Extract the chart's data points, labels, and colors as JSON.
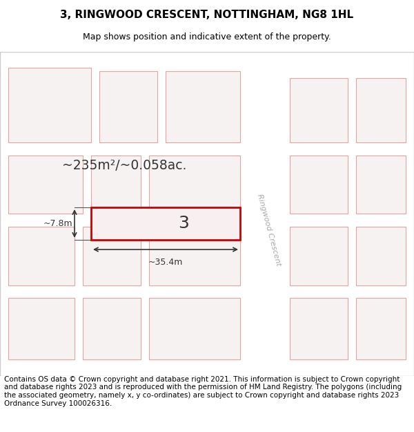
{
  "title_line1": "3, RINGWOOD CRESCENT, NOTTINGHAM, NG8 1HL",
  "title_line2": "Map shows position and indicative extent of the property.",
  "footer_text": "Contains OS data © Crown copyright and database right 2021. This information is subject to Crown copyright and database rights 2023 and is reproduced with the permission of HM Land Registry. The polygons (including the associated geometry, namely x, y co-ordinates) are subject to Crown copyright and database rights 2023 Ordnance Survey 100026316.",
  "area_text": "~235m²/~0.058ac.",
  "width_label": "~35.4m",
  "height_label": "~7.8m",
  "property_number": "3",
  "road_label": "Ringwood Crescent",
  "bg_color": "#f5f5f5",
  "map_bg": "#f0eeee",
  "building_fill": "#f0eeee",
  "building_stroke": "#e8a0a0",
  "highlight_fill": "#f8f0f0",
  "highlight_stroke": "#cc0000",
  "road_color": "#ffffff",
  "title_fontsize": 11,
  "subtitle_fontsize": 9,
  "footer_fontsize": 7.5
}
